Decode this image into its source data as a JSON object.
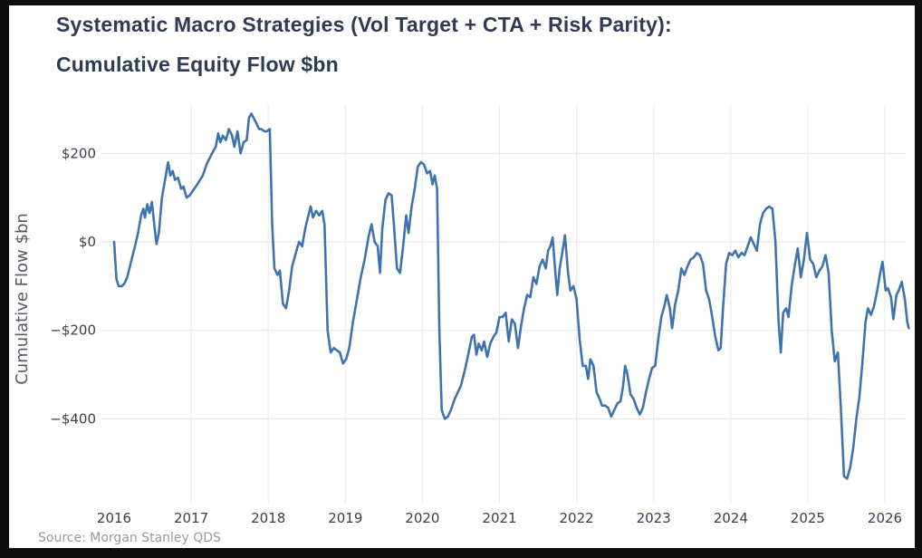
{
  "chart_data": {
    "type": "line",
    "title": "Systematic Macro Strategies (Vol Target + CTA + Risk Parity):",
    "subtitle": "Cumulative Equity Flow $bn",
    "xlabel": "",
    "ylabel": "Cumulative Flow $bn",
    "source": "Source: Morgan Stanley QDS",
    "x_ticks": [
      "2016",
      "2017",
      "2018",
      "2019",
      "2020",
      "2021",
      "2022",
      "2023",
      "2024",
      "2025",
      "2026"
    ],
    "y_ticks": [
      {
        "value": 200,
        "label": "$200"
      },
      {
        "value": 0,
        "label": "$0"
      },
      {
        "value": -200,
        "label": "−$200"
      },
      {
        "value": -400,
        "label": "−$400"
      }
    ],
    "xlim": [
      2016.0,
      2026.35
    ],
    "ylim": [
      -560,
      320
    ],
    "grid": true,
    "line_color": "#3f73b0",
    "series": [
      {
        "name": "Cumulative Equity Flow",
        "points": [
          [
            2016.0,
            0
          ],
          [
            2016.03,
            -85
          ],
          [
            2016.06,
            -100
          ],
          [
            2016.1,
            -100
          ],
          [
            2016.13,
            -95
          ],
          [
            2016.17,
            -80
          ],
          [
            2016.22,
            -45
          ],
          [
            2016.27,
            -10
          ],
          [
            2016.31,
            20
          ],
          [
            2016.35,
            60
          ],
          [
            2016.38,
            75
          ],
          [
            2016.4,
            55
          ],
          [
            2016.43,
            85
          ],
          [
            2016.46,
            65
          ],
          [
            2016.49,
            90
          ],
          [
            2016.52,
            40
          ],
          [
            2016.55,
            -5
          ],
          [
            2016.58,
            20
          ],
          [
            2016.62,
            100
          ],
          [
            2016.66,
            140
          ],
          [
            2016.7,
            180
          ],
          [
            2016.73,
            150
          ],
          [
            2016.76,
            160
          ],
          [
            2016.79,
            140
          ],
          [
            2016.83,
            145
          ],
          [
            2016.87,
            120
          ],
          [
            2016.9,
            125
          ],
          [
            2016.94,
            100
          ],
          [
            2016.98,
            105
          ],
          [
            2017.02,
            115
          ],
          [
            2017.08,
            130
          ],
          [
            2017.15,
            150
          ],
          [
            2017.2,
            175
          ],
          [
            2017.27,
            200
          ],
          [
            2017.32,
            215
          ],
          [
            2017.35,
            245
          ],
          [
            2017.38,
            225
          ],
          [
            2017.41,
            240
          ],
          [
            2017.45,
            230
          ],
          [
            2017.49,
            255
          ],
          [
            2017.53,
            240
          ],
          [
            2017.56,
            215
          ],
          [
            2017.6,
            250
          ],
          [
            2017.64,
            200
          ],
          [
            2017.68,
            225
          ],
          [
            2017.72,
            230
          ],
          [
            2017.75,
            280
          ],
          [
            2017.78,
            290
          ],
          [
            2017.81,
            280
          ],
          [
            2017.84,
            270
          ],
          [
            2017.88,
            255
          ],
          [
            2017.91,
            255
          ],
          [
            2017.95,
            250
          ],
          [
            2017.98,
            250
          ],
          [
            2018.02,
            255
          ],
          [
            2018.05,
            40
          ],
          [
            2018.08,
            -60
          ],
          [
            2018.12,
            -75
          ],
          [
            2018.15,
            -65
          ],
          [
            2018.19,
            -140
          ],
          [
            2018.23,
            -150
          ],
          [
            2018.27,
            -110
          ],
          [
            2018.31,
            -55
          ],
          [
            2018.35,
            -30
          ],
          [
            2018.4,
            0
          ],
          [
            2018.44,
            -10
          ],
          [
            2018.48,
            30
          ],
          [
            2018.52,
            60
          ],
          [
            2018.55,
            80
          ],
          [
            2018.58,
            55
          ],
          [
            2018.62,
            70
          ],
          [
            2018.66,
            60
          ],
          [
            2018.7,
            70
          ],
          [
            2018.73,
            40
          ],
          [
            2018.77,
            -200
          ],
          [
            2018.81,
            -250
          ],
          [
            2018.85,
            -240
          ],
          [
            2018.89,
            -245
          ],
          [
            2018.93,
            -250
          ],
          [
            2018.97,
            -275
          ],
          [
            2019.01,
            -265
          ],
          [
            2019.05,
            -240
          ],
          [
            2019.1,
            -180
          ],
          [
            2019.15,
            -130
          ],
          [
            2019.2,
            -80
          ],
          [
            2019.25,
            -40
          ],
          [
            2019.3,
            10
          ],
          [
            2019.34,
            40
          ],
          [
            2019.38,
            0
          ],
          [
            2019.42,
            -10
          ],
          [
            2019.45,
            -70
          ],
          [
            2019.48,
            30
          ],
          [
            2019.52,
            95
          ],
          [
            2019.56,
            110
          ],
          [
            2019.6,
            105
          ],
          [
            2019.63,
            40
          ],
          [
            2019.67,
            -60
          ],
          [
            2019.71,
            -70
          ],
          [
            2019.75,
            -10
          ],
          [
            2019.79,
            60
          ],
          [
            2019.82,
            20
          ],
          [
            2019.86,
            80
          ],
          [
            2019.9,
            120
          ],
          [
            2019.94,
            170
          ],
          [
            2019.98,
            180
          ],
          [
            2020.02,
            175
          ],
          [
            2020.06,
            155
          ],
          [
            2020.1,
            160
          ],
          [
            2020.13,
            130
          ],
          [
            2020.16,
            150
          ],
          [
            2020.19,
            120
          ],
          [
            2020.22,
            -200
          ],
          [
            2020.25,
            -380
          ],
          [
            2020.29,
            -400
          ],
          [
            2020.33,
            -395
          ],
          [
            2020.37,
            -380
          ],
          [
            2020.42,
            -355
          ],
          [
            2020.46,
            -340
          ],
          [
            2020.5,
            -325
          ],
          [
            2020.55,
            -290
          ],
          [
            2020.6,
            -250
          ],
          [
            2020.64,
            -215
          ],
          [
            2020.67,
            -210
          ],
          [
            2020.7,
            -255
          ],
          [
            2020.73,
            -230
          ],
          [
            2020.77,
            -245
          ],
          [
            2020.8,
            -225
          ],
          [
            2020.84,
            -260
          ],
          [
            2020.88,
            -230
          ],
          [
            2020.92,
            -215
          ],
          [
            2020.96,
            -205
          ],
          [
            2021.0,
            -170
          ],
          [
            2021.04,
            -170
          ],
          [
            2021.08,
            -160
          ],
          [
            2021.12,
            -225
          ],
          [
            2021.16,
            -175
          ],
          [
            2021.2,
            -185
          ],
          [
            2021.24,
            -240
          ],
          [
            2021.28,
            -190
          ],
          [
            2021.32,
            -150
          ],
          [
            2021.36,
            -120
          ],
          [
            2021.4,
            -125
          ],
          [
            2021.44,
            -80
          ],
          [
            2021.48,
            -95
          ],
          [
            2021.52,
            -55
          ],
          [
            2021.56,
            -40
          ],
          [
            2021.6,
            -60
          ],
          [
            2021.63,
            -20
          ],
          [
            2021.66,
            -10
          ],
          [
            2021.69,
            10
          ],
          [
            2021.72,
            -60
          ],
          [
            2021.75,
            -120
          ],
          [
            2021.78,
            -60
          ],
          [
            2021.81,
            -30
          ],
          [
            2021.85,
            15
          ],
          [
            2021.89,
            -70
          ],
          [
            2021.92,
            -110
          ],
          [
            2021.96,
            -100
          ],
          [
            2022.0,
            -130
          ],
          [
            2022.04,
            -220
          ],
          [
            2022.08,
            -280
          ],
          [
            2022.12,
            -280
          ],
          [
            2022.15,
            -310
          ],
          [
            2022.18,
            -265
          ],
          [
            2022.22,
            -280
          ],
          [
            2022.26,
            -340
          ],
          [
            2022.3,
            -355
          ],
          [
            2022.33,
            -370
          ],
          [
            2022.37,
            -370
          ],
          [
            2022.41,
            -375
          ],
          [
            2022.45,
            -395
          ],
          [
            2022.49,
            -380
          ],
          [
            2022.53,
            -365
          ],
          [
            2022.57,
            -360
          ],
          [
            2022.6,
            -330
          ],
          [
            2022.63,
            -280
          ],
          [
            2022.66,
            -300
          ],
          [
            2022.7,
            -345
          ],
          [
            2022.74,
            -355
          ],
          [
            2022.78,
            -375
          ],
          [
            2022.82,
            -390
          ],
          [
            2022.86,
            -375
          ],
          [
            2022.9,
            -340
          ],
          [
            2022.94,
            -310
          ],
          [
            2022.98,
            -285
          ],
          [
            2023.02,
            -280
          ],
          [
            2023.06,
            -220
          ],
          [
            2023.1,
            -170
          ],
          [
            2023.14,
            -145
          ],
          [
            2023.17,
            -120
          ],
          [
            2023.21,
            -150
          ],
          [
            2023.24,
            -195
          ],
          [
            2023.28,
            -140
          ],
          [
            2023.32,
            -110
          ],
          [
            2023.36,
            -60
          ],
          [
            2023.4,
            -75
          ],
          [
            2023.44,
            -55
          ],
          [
            2023.48,
            -40
          ],
          [
            2023.52,
            -35
          ],
          [
            2023.56,
            -25
          ],
          [
            2023.6,
            -30
          ],
          [
            2023.64,
            -50
          ],
          [
            2023.68,
            -110
          ],
          [
            2023.72,
            -130
          ],
          [
            2023.76,
            -170
          ],
          [
            2023.8,
            -215
          ],
          [
            2023.84,
            -245
          ],
          [
            2023.87,
            -240
          ],
          [
            2023.9,
            -150
          ],
          [
            2023.94,
            -50
          ],
          [
            2023.98,
            -25
          ],
          [
            2024.02,
            -30
          ],
          [
            2024.06,
            -20
          ],
          [
            2024.1,
            -35
          ],
          [
            2024.14,
            -25
          ],
          [
            2024.18,
            -30
          ],
          [
            2024.22,
            -10
          ],
          [
            2024.26,
            10
          ],
          [
            2024.3,
            -5
          ],
          [
            2024.34,
            -20
          ],
          [
            2024.38,
            40
          ],
          [
            2024.42,
            65
          ],
          [
            2024.46,
            75
          ],
          [
            2024.5,
            80
          ],
          [
            2024.54,
            75
          ],
          [
            2024.58,
            0
          ],
          [
            2024.62,
            -180
          ],
          [
            2024.65,
            -250
          ],
          [
            2024.68,
            -160
          ],
          [
            2024.72,
            -150
          ],
          [
            2024.75,
            -170
          ],
          [
            2024.79,
            -100
          ],
          [
            2024.83,
            -55
          ],
          [
            2024.87,
            -15
          ],
          [
            2024.91,
            -80
          ],
          [
            2024.95,
            -40
          ],
          [
            2024.99,
            20
          ],
          [
            2025.03,
            -40
          ],
          [
            2025.07,
            -50
          ],
          [
            2025.11,
            -80
          ],
          [
            2025.15,
            -65
          ],
          [
            2025.19,
            -55
          ],
          [
            2025.23,
            -30
          ],
          [
            2025.27,
            -70
          ],
          [
            2025.31,
            -200
          ],
          [
            2025.35,
            -270
          ],
          [
            2025.39,
            -250
          ],
          [
            2025.43,
            -380
          ],
          [
            2025.47,
            -530
          ],
          [
            2025.51,
            -535
          ],
          [
            2025.55,
            -510
          ],
          [
            2025.59,
            -465
          ],
          [
            2025.63,
            -400
          ],
          [
            2025.67,
            -350
          ],
          [
            2025.71,
            -270
          ],
          [
            2025.75,
            -180
          ],
          [
            2025.78,
            -150
          ],
          [
            2025.82,
            -165
          ],
          [
            2025.86,
            -145
          ],
          [
            2025.9,
            -110
          ],
          [
            2025.94,
            -70
          ],
          [
            2025.97,
            -45
          ],
          [
            2026.01,
            -110
          ],
          [
            2026.04,
            -105
          ],
          [
            2026.08,
            -125
          ],
          [
            2026.11,
            -175
          ],
          [
            2026.15,
            -120
          ],
          [
            2026.18,
            -110
          ],
          [
            2026.22,
            -90
          ],
          [
            2026.26,
            -130
          ],
          [
            2026.29,
            -180
          ],
          [
            2026.31,
            -195
          ]
        ]
      }
    ]
  }
}
